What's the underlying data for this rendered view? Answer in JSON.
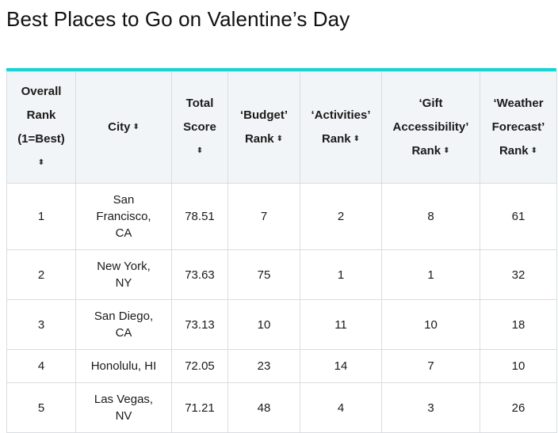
{
  "title": "Best Places to Go on Valentine’s Day",
  "table": {
    "headers": [
      {
        "line1": "Overall",
        "line2": "Rank",
        "line3": "(1=Best)"
      },
      {
        "text": "City"
      },
      {
        "line1": "Total",
        "line2": "Score"
      },
      {
        "line1": "‘Budget’",
        "line2": "Rank"
      },
      {
        "line1": "‘Activities’",
        "line2": "Rank"
      },
      {
        "line1": "‘Gift",
        "line2": "Accessibility’",
        "line3": "Rank"
      },
      {
        "line1": "‘Weather",
        "line2": "Forecast’",
        "line3": "Rank"
      }
    ],
    "sort_icon": "sort-up-down-icon",
    "sort_glyph": "⬍",
    "rows": [
      {
        "rank": "1",
        "city": "San Francisco, CA",
        "total": "78.51",
        "budget": "7",
        "activities": "2",
        "gift": "8",
        "weather": "61"
      },
      {
        "rank": "2",
        "city": "New York, NY",
        "total": "73.63",
        "budget": "75",
        "activities": "1",
        "gift": "1",
        "weather": "32"
      },
      {
        "rank": "3",
        "city": "San Diego, CA",
        "total": "73.13",
        "budget": "10",
        "activities": "11",
        "gift": "10",
        "weather": "18"
      },
      {
        "rank": "4",
        "city": "Honolulu, HI",
        "total": "72.05",
        "budget": "23",
        "activities": "14",
        "gift": "7",
        "weather": "10"
      },
      {
        "rank": "5",
        "city": "Las Vegas, NV",
        "total": "71.21",
        "budget": "48",
        "activities": "4",
        "gift": "3",
        "weather": "26"
      }
    ]
  },
  "colors": {
    "accent": "#1ad3d6",
    "header_bg": "#f2f5f7",
    "border": "#d9dde0"
  }
}
